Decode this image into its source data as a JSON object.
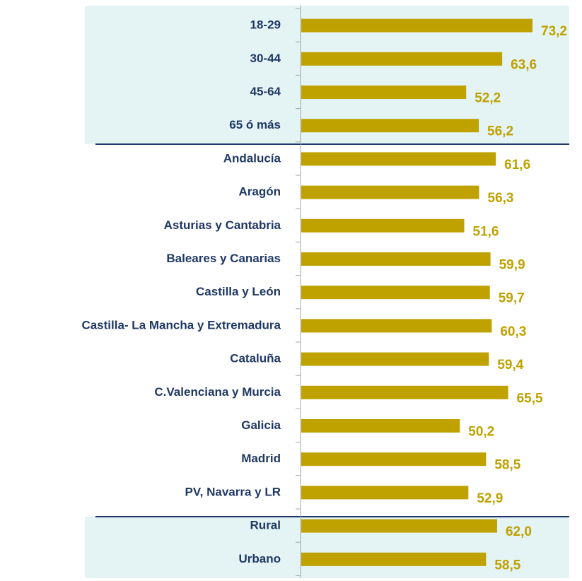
{
  "chart_data": {
    "type": "bar",
    "orientation": "horizontal",
    "categories": [
      "18-29",
      "30-44",
      "45-64",
      "65 ó más",
      "Andalucía",
      "Aragón",
      "Asturias y Cantabria",
      "Baleares y Canarias",
      "Castilla y León",
      "Castilla- La Mancha y Extremadura",
      "Cataluña",
      "C.Valenciana y Murcia",
      "Galicia",
      "Madrid",
      "PV, Navarra y LR",
      "Rural",
      "Urbano"
    ],
    "values": [
      73.2,
      63.6,
      52.2,
      56.2,
      61.6,
      56.3,
      51.6,
      59.9,
      59.7,
      60.3,
      59.4,
      65.5,
      50.2,
      58.5,
      52.9,
      62.0,
      58.5
    ],
    "value_labels": [
      "73,2",
      "63,6",
      "52,2",
      "56,2",
      "61,6",
      "56,3",
      "51,6",
      "59,9",
      "59,7",
      "60,3",
      "59,4",
      "65,5",
      "50,2",
      "58,5",
      "52,9",
      "62,0",
      "58,5"
    ],
    "color": "#bfa100"
  }
}
